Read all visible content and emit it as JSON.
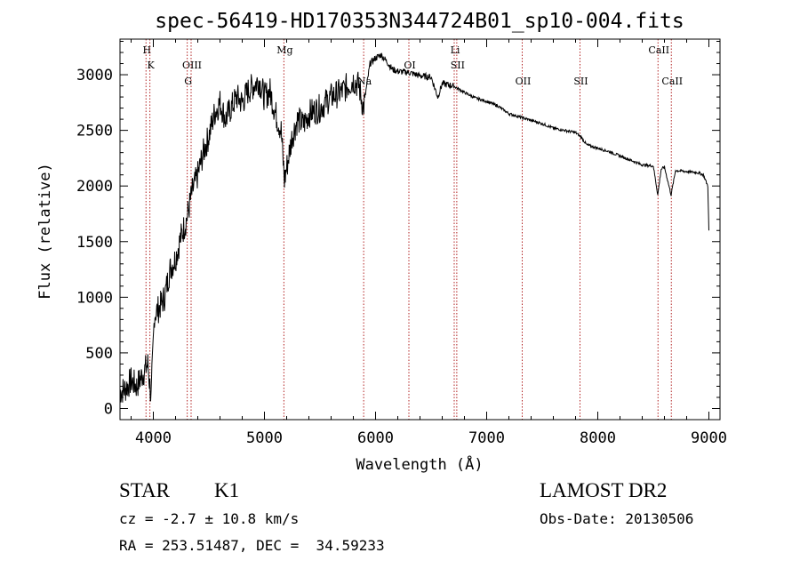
{
  "chart_data": {
    "type": "line",
    "title": "spec-56419-HD170353N344724B01_sp10-004.fits",
    "xlabel": "Wavelength (Å)",
    "ylabel": "Flux (relative)",
    "xlim": [
      3700,
      9100
    ],
    "ylim": [
      -100,
      3320
    ],
    "xticks": [
      4000,
      5000,
      6000,
      7000,
      8000,
      9000
    ],
    "yticks": [
      0,
      500,
      1000,
      1500,
      2000,
      2500,
      3000
    ],
    "grid": false,
    "series": [
      {
        "color": "#000000",
        "x": [
          3700,
          3750,
          3800,
          3850,
          3900,
          3950,
          3980,
          4010,
          4050,
          4100,
          4150,
          4200,
          4250,
          4300,
          4350,
          4400,
          4450,
          4500,
          4550,
          4600,
          4650,
          4700,
          4750,
          4800,
          4850,
          4900,
          4950,
          5000,
          5050,
          5100,
          5150,
          5180,
          5250,
          5300,
          5350,
          5400,
          5500,
          5600,
          5700,
          5800,
          5850,
          5890,
          5950,
          6000,
          6050,
          6100,
          6150,
          6200,
          6300,
          6400,
          6500,
          6560,
          6600,
          6700,
          6800,
          6900,
          7000,
          7100,
          7200,
          7300,
          7400,
          7500,
          7600,
          7700,
          7800,
          7850,
          7900,
          8000,
          8100,
          8200,
          8300,
          8400,
          8500,
          8540,
          8570,
          8600,
          8660,
          8700,
          8800,
          8900,
          8950,
          8990,
          9000
        ],
        "y": [
          150,
          180,
          250,
          200,
          300,
          400,
          90,
          850,
          900,
          1000,
          1250,
          1350,
          1550,
          1700,
          1950,
          2100,
          2300,
          2450,
          2650,
          2750,
          2600,
          2700,
          2800,
          2750,
          2850,
          2900,
          2950,
          2800,
          2850,
          2650,
          2500,
          2050,
          2450,
          2600,
          2550,
          2650,
          2700,
          2800,
          2850,
          2950,
          2900,
          2700,
          3100,
          3150,
          3180,
          3120,
          3050,
          3030,
          3020,
          2990,
          2980,
          2800,
          2920,
          2900,
          2840,
          2790,
          2760,
          2720,
          2650,
          2620,
          2590,
          2560,
          2520,
          2500,
          2480,
          2440,
          2370,
          2340,
          2310,
          2270,
          2230,
          2190,
          2180,
          1920,
          2150,
          2170,
          1920,
          2140,
          2130,
          2120,
          2100,
          2000,
          1600
        ]
      }
    ],
    "lines": [
      {
        "label": "H",
        "row": 1,
        "wavelength": 3934
      },
      {
        "label": "K",
        "row": 2,
        "wavelength": 3969
      },
      {
        "label": "OIII",
        "row": 2,
        "wavelength": 4340
      },
      {
        "label": "G",
        "row": 3,
        "wavelength": 4305
      },
      {
        "label": "Mg",
        "row": 1,
        "wavelength": 5175
      },
      {
        "label": "Na",
        "row": 3,
        "wavelength": 5893
      },
      {
        "label": "OI",
        "row": 2,
        "wavelength": 6300
      },
      {
        "label": "Li",
        "row": 1,
        "wavelength": 6708
      },
      {
        "label": "SII",
        "row": 2,
        "wavelength": 6731
      },
      {
        "label": "OII",
        "row": 3,
        "wavelength": 7320
      },
      {
        "label": "SII",
        "row": 3,
        "wavelength": 7840
      },
      {
        "label": "CaII",
        "row": 1,
        "wavelength": 8542
      },
      {
        "label": "CaII",
        "row": 3,
        "wavelength": 8662
      }
    ],
    "linecolor": "#b22222"
  },
  "info": {
    "class": "STAR",
    "subclass": "K1",
    "survey": "LAMOST DR2",
    "cz": "cz = -2.7 ± 10.8 km/s",
    "obs_date": "Obs-Date: 20130506",
    "coords": "RA = 253.51487, DEC =  34.59233"
  }
}
